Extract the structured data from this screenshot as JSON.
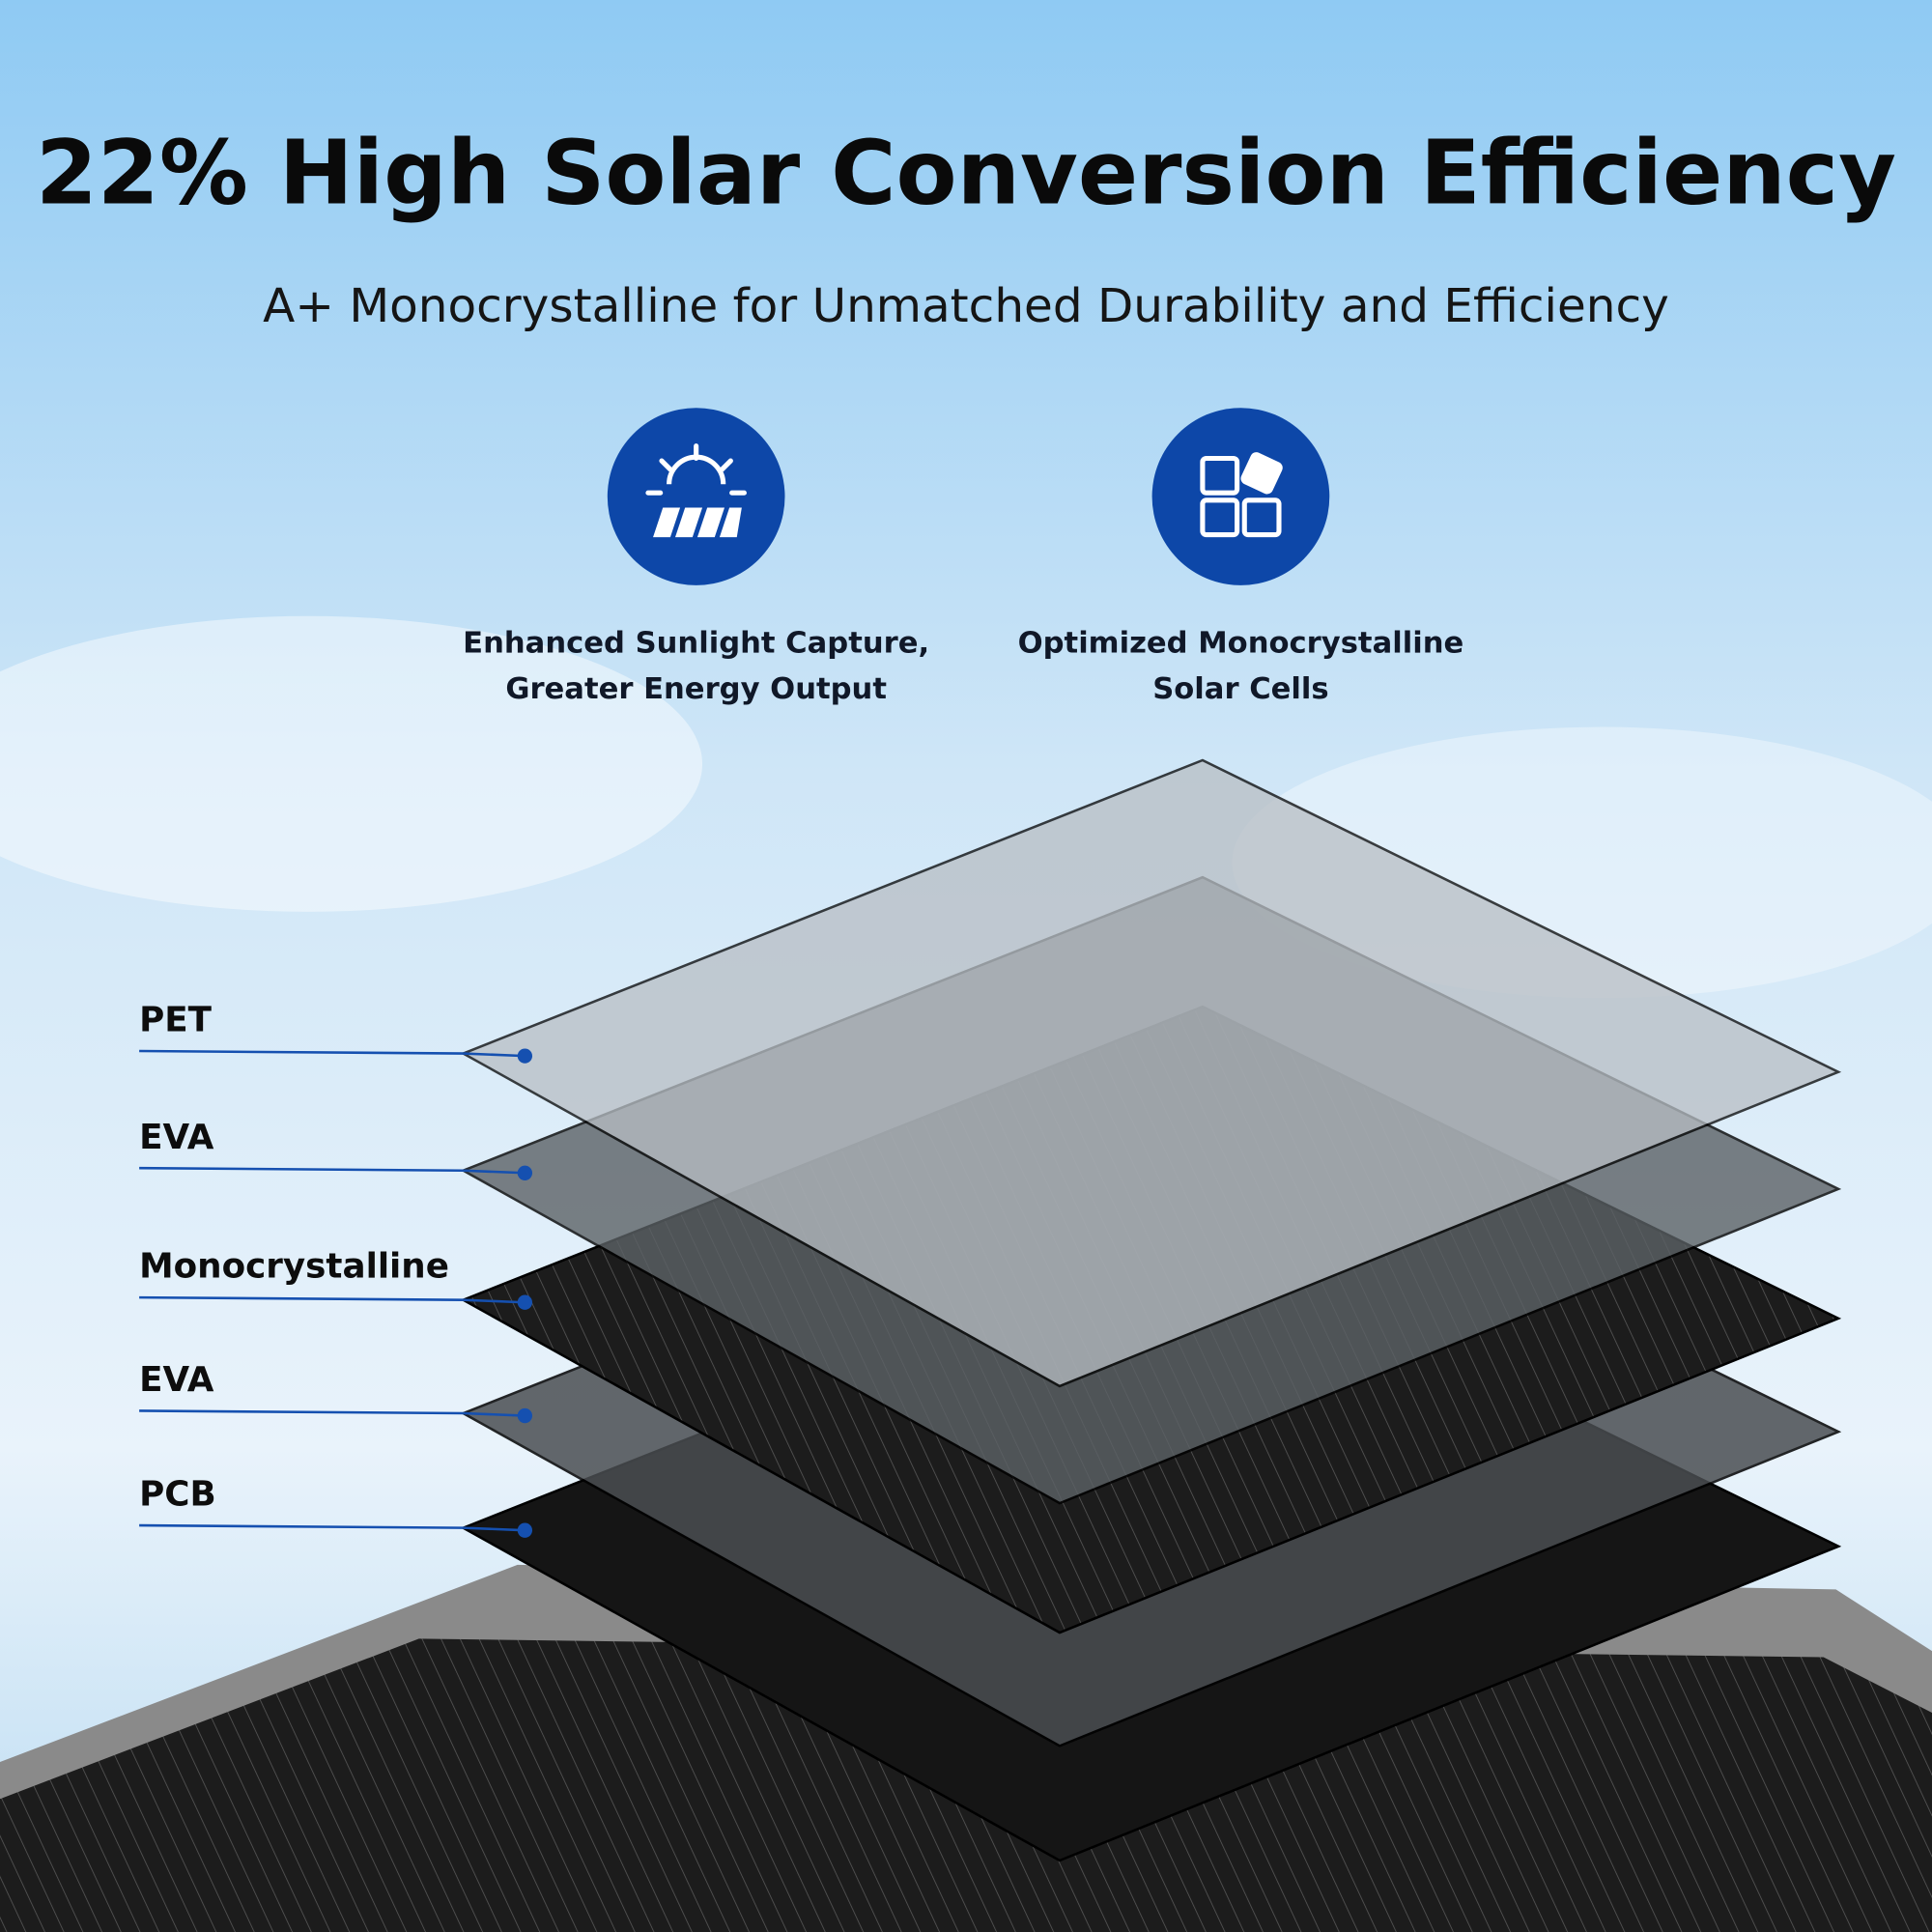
{
  "title": "22% High Solar Conversion Efficiency",
  "subtitle": "A+ Monocrystalline for Unmatched Durability and Efficiency",
  "features": [
    {
      "lines": [
        "Enhanced Sunlight Capture,",
        "Greater Energy Output"
      ]
    },
    {
      "lines": [
        "Optimized Monocrystalline",
        "Solar Cells"
      ]
    }
  ],
  "layers": [
    "PET",
    "EVA",
    "Monocrystalline",
    "EVA",
    "PCB"
  ]
}
